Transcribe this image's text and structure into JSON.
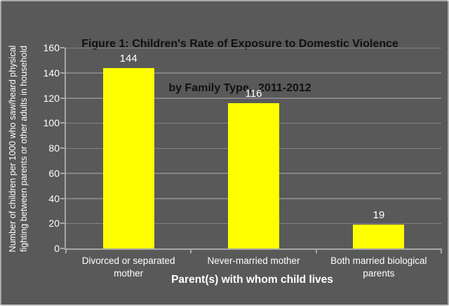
{
  "figure": {
    "title_line1": "Figure 1: Children's Rate of Exposure to Domestic Violence",
    "title_line2": "by Family Type,  2011-2012",
    "y_axis_title_line1": "Number of children per 1000 who saw/heard physical",
    "y_axis_title_line2": "fighting between parents or other adults in household",
    "x_axis_title": "Parent(s) with whom child lives"
  },
  "chart_data": {
    "type": "bar",
    "title": "Figure 1: Children's Rate of Exposure to Domestic Violence by Family Type, 2011-2012",
    "categories": [
      "Divorced or separated mother",
      "Never-married mother",
      "Both married biological parents"
    ],
    "values": [
      144,
      116,
      19
    ],
    "data_labels": [
      "144",
      "116",
      "19"
    ],
    "xlabel": "Parent(s) with whom child lives",
    "ylabel": "Number of children per 1000 who saw/heard physical fighting between parents or other adults in household",
    "ylim": [
      0,
      160
    ],
    "yticks": [
      0,
      20,
      40,
      60,
      80,
      100,
      120,
      140,
      160
    ],
    "grid": true,
    "legend": false,
    "colors": {
      "bar": "#ffff00",
      "background": "#595959",
      "gridline": "#848484",
      "axis": "#a6a6a6",
      "label_text": "#ffffff",
      "title_text": "#111111",
      "border": "#a9a9a9"
    }
  }
}
